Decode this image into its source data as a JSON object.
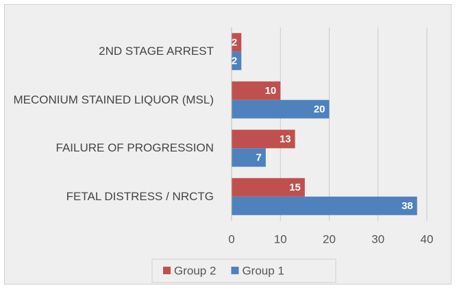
{
  "chart_data": {
    "type": "bar",
    "orientation": "horizontal",
    "categories": [
      "2ND STAGE ARREST",
      "MECONIUM STAINED LIQUOR (MSL)",
      "FAILURE OF PROGRESSION",
      "FETAL DISTRESS / NRCTG"
    ],
    "series": [
      {
        "name": "Group 2",
        "color": "#c0504d",
        "values": [
          2,
          10,
          13,
          15
        ]
      },
      {
        "name": "Group 1",
        "color": "#4f81bd",
        "values": [
          2,
          20,
          7,
          38
        ]
      }
    ],
    "xlim": [
      0,
      40
    ],
    "xticks": [
      0,
      10,
      20,
      30,
      40
    ],
    "grid": true,
    "legend": "bottom"
  }
}
